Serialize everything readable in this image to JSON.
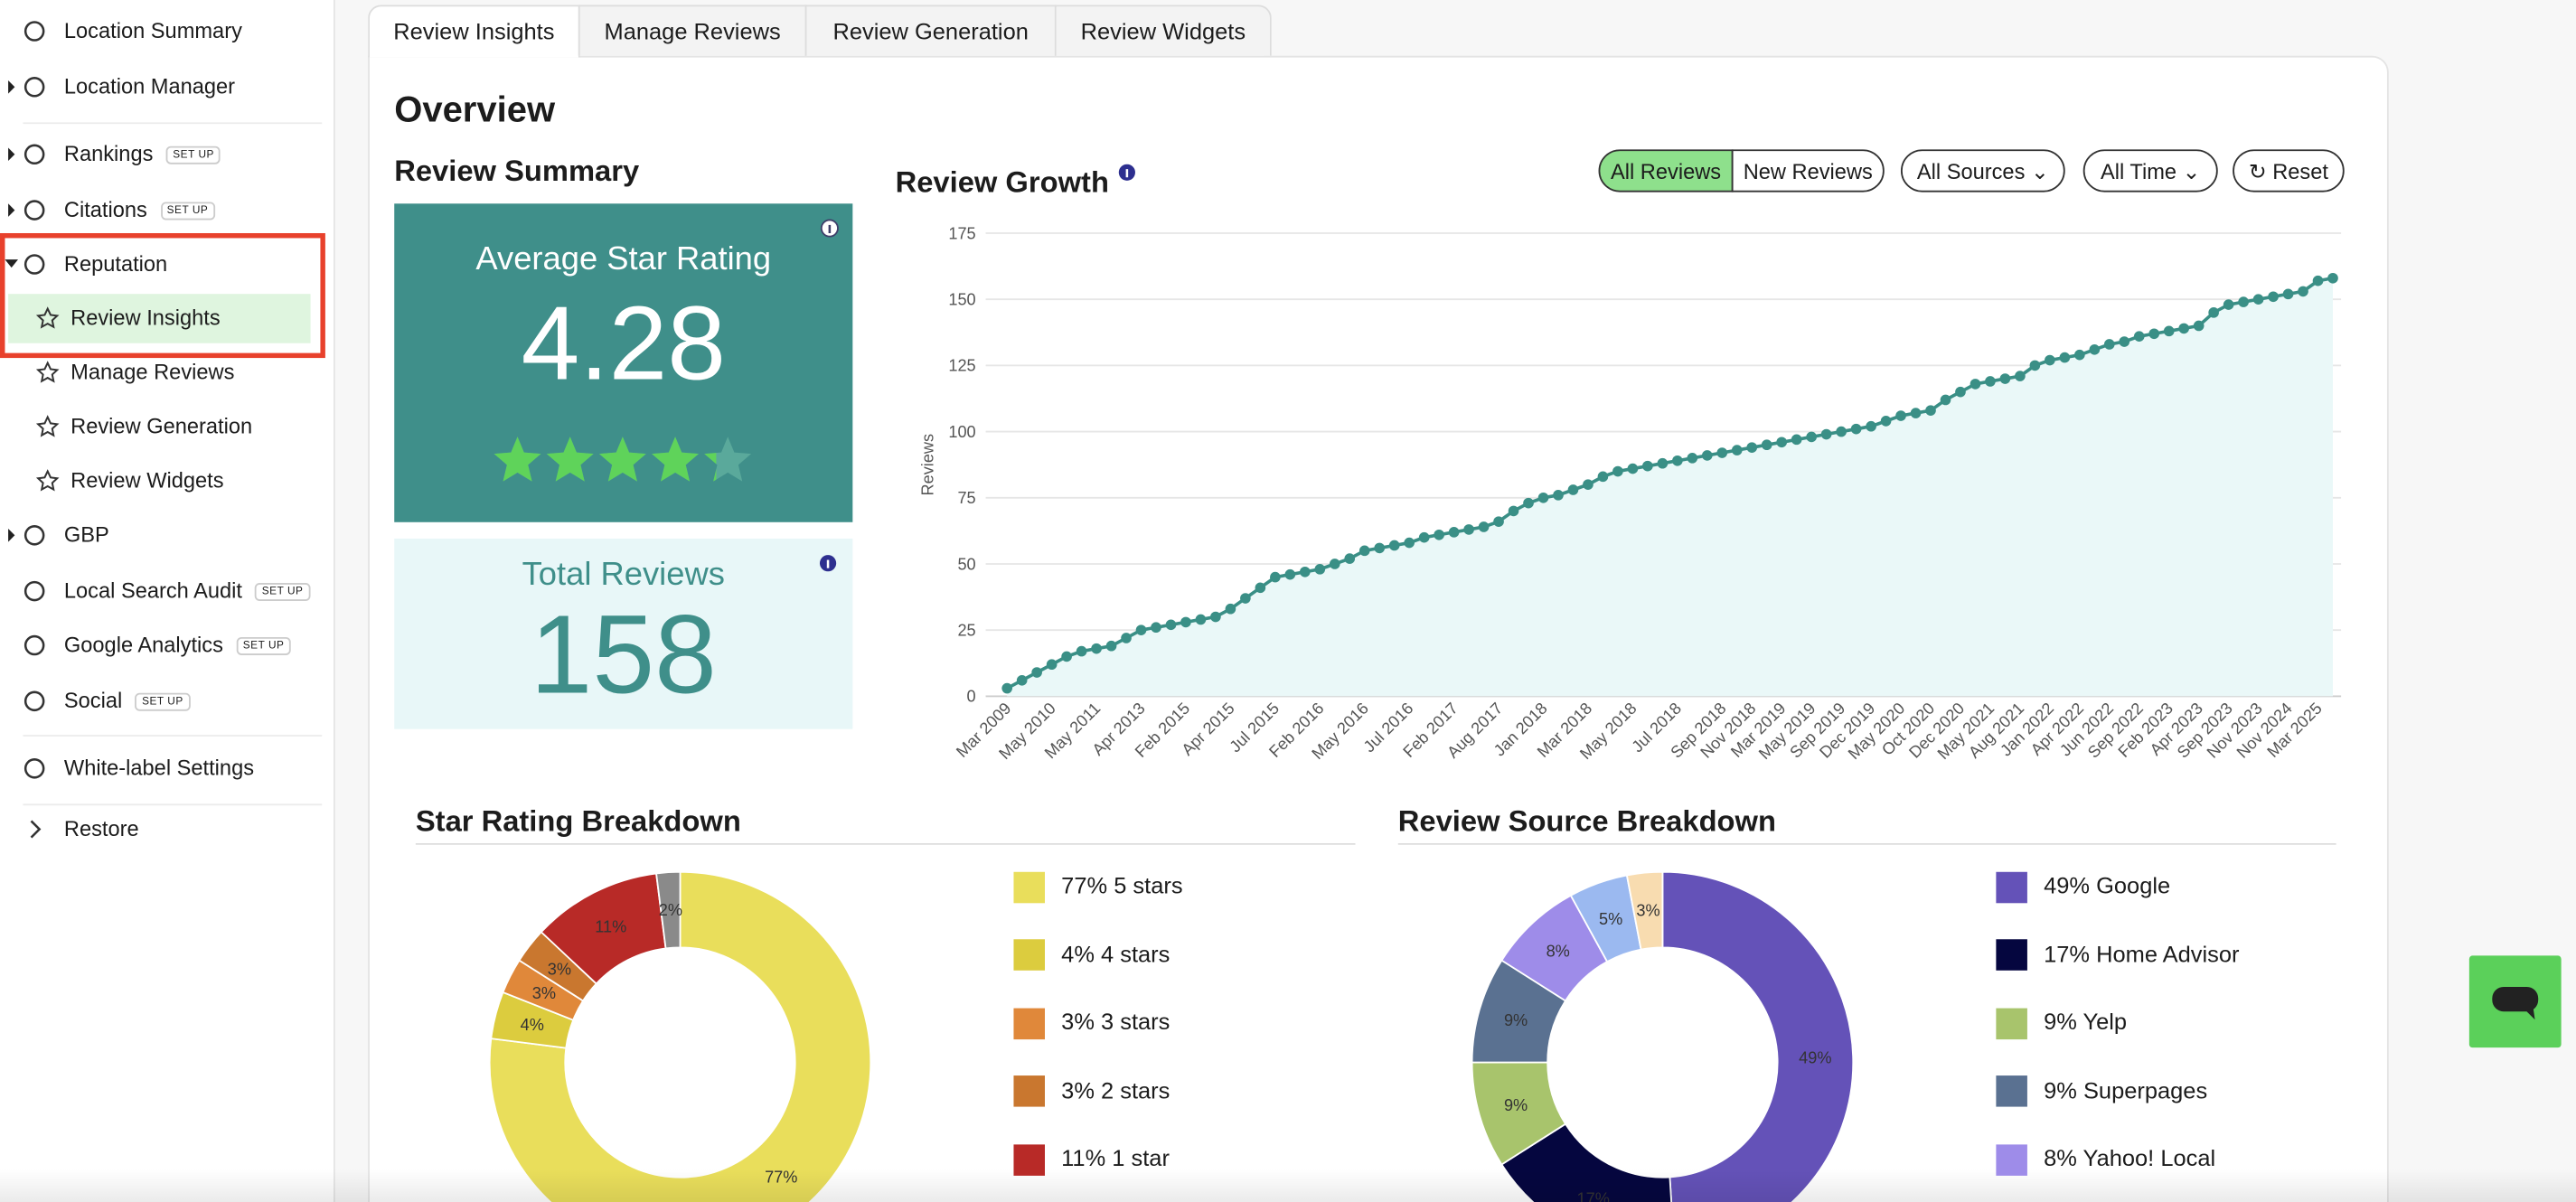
{
  "sidebar": [
    {
      "label": "Location Summary"
    },
    {
      "label": "Location Manager"
    },
    {
      "label": "Rankings",
      "badge": "SET UP"
    },
    {
      "label": "Citations",
      "badge": "SET UP"
    },
    {
      "label": "Reputation"
    },
    {
      "label": "Review Insights"
    },
    {
      "label": "Manage Reviews"
    },
    {
      "label": "Review Generation"
    },
    {
      "label": "Review Widgets"
    },
    {
      "label": "GBP"
    },
    {
      "label": "Local Search Audit",
      "badge": "SET UP"
    },
    {
      "label": "Google Analytics",
      "badge": "SET UP"
    },
    {
      "label": "Social",
      "badge": "SET UP"
    },
    {
      "label": "White-label Settings"
    },
    {
      "label": "Restore"
    }
  ],
  "tabs": [
    "Review Insights",
    "Manage Reviews",
    "Review Generation",
    "Review Widgets"
  ],
  "overview": "Overview",
  "summary": {
    "title": "Review Summary",
    "avg_label": "Average Star Rating",
    "avg": 4.28,
    "total_label": "Total Reviews",
    "total": 158
  },
  "filters": {
    "review_type": [
      "All Reviews",
      "New Reviews"
    ],
    "sources": "All Sources",
    "time": "All Time",
    "reset": "Reset"
  },
  "chart_data": [
    {
      "type": "line",
      "title": "Review Growth",
      "y_label": "Reviews",
      "color": "#3a8f86",
      "categories": [
        "Mar 2009",
        null,
        null,
        "May 2010",
        null,
        null,
        "May 2011",
        null,
        null,
        "Apr 2013",
        null,
        null,
        "Feb 2015",
        null,
        null,
        "Apr 2015",
        null,
        null,
        "Jul 2015",
        null,
        null,
        "Feb 2016",
        null,
        null,
        "May 2016",
        null,
        null,
        "Jul 2016",
        null,
        null,
        "Feb 2017",
        null,
        null,
        "Aug 2017",
        null,
        null,
        "Jan 2018",
        null,
        null,
        "Mar 2018",
        null,
        null,
        "May 2018",
        null,
        null,
        "Jul 2018",
        null,
        null,
        "Sep 2018",
        null,
        "Nov 2018",
        null,
        "Mar 2019",
        null,
        "May 2019",
        null,
        "Sep 2019",
        null,
        "Dec 2019",
        null,
        "May 2020",
        null,
        "Oct 2020",
        null,
        "Dec 2020",
        null,
        "May 2021",
        null,
        "Aug 2021",
        null,
        "Jan 2022",
        null,
        "Apr 2022",
        null,
        "Jun 2022",
        null,
        "Sep 2022",
        null,
        "Feb 2023",
        null,
        "Apr 2023",
        null,
        "Sep 2023",
        null,
        "Nov 2023",
        null,
        "Nov 2024",
        null,
        "Mar 2025",
        null
      ],
      "values": [
        3,
        6,
        9,
        12,
        15,
        17,
        18,
        19,
        22,
        25,
        26,
        27,
        28,
        29,
        30,
        33,
        37,
        41,
        45,
        46,
        47,
        48,
        50,
        52,
        55,
        56,
        57,
        58,
        60,
        61,
        62,
        63,
        64,
        66,
        70,
        73,
        75,
        76,
        78,
        80,
        83,
        85,
        86,
        87,
        88,
        89,
        90,
        91,
        92,
        93,
        94,
        95,
        96,
        97,
        98,
        99,
        100,
        101,
        102,
        104,
        106,
        107,
        108,
        112,
        115,
        118,
        119,
        120,
        121,
        125,
        127,
        128,
        129,
        131,
        133,
        134,
        136,
        137,
        138,
        139,
        140,
        145,
        148,
        149,
        150,
        151,
        152,
        153,
        157,
        158
      ],
      "ylim": [
        0,
        175
      ],
      "yticks": [
        0,
        25,
        50,
        75,
        100,
        125,
        150,
        175
      ],
      "grid": true
    },
    {
      "type": "donut",
      "title": "Star Rating Breakdown",
      "categories": [
        "5 stars",
        "4 stars",
        "3 stars",
        "2 stars",
        "1 star",
        null
      ],
      "values": [
        77,
        4,
        3,
        3,
        11,
        2
      ],
      "value_labels": [
        "77%",
        "4%",
        "3%",
        "3%",
        "11%",
        "2%"
      ],
      "colors": [
        "#e9de5b",
        "#dccc3e",
        "#e0883a",
        "#c9772f",
        "#b82a27",
        "#8a8a8a"
      ]
    },
    {
      "type": "donut",
      "title": "Review Source Breakdown",
      "categories": [
        "Google",
        "Home Advisor",
        "Yelp",
        "Superpages",
        "Yahoo! Local",
        null,
        null
      ],
      "values": [
        49,
        17,
        9,
        9,
        8,
        5,
        3
      ],
      "value_labels": [
        "49%",
        "17%",
        "9%",
        "9%",
        "8%",
        "5%",
        "3%"
      ],
      "colors": [
        "#6452b8",
        "#05063f",
        "#a8c46c",
        "#5a7191",
        "#9e8ce9",
        "#9bb9f0",
        "#f8dcb0"
      ]
    }
  ]
}
